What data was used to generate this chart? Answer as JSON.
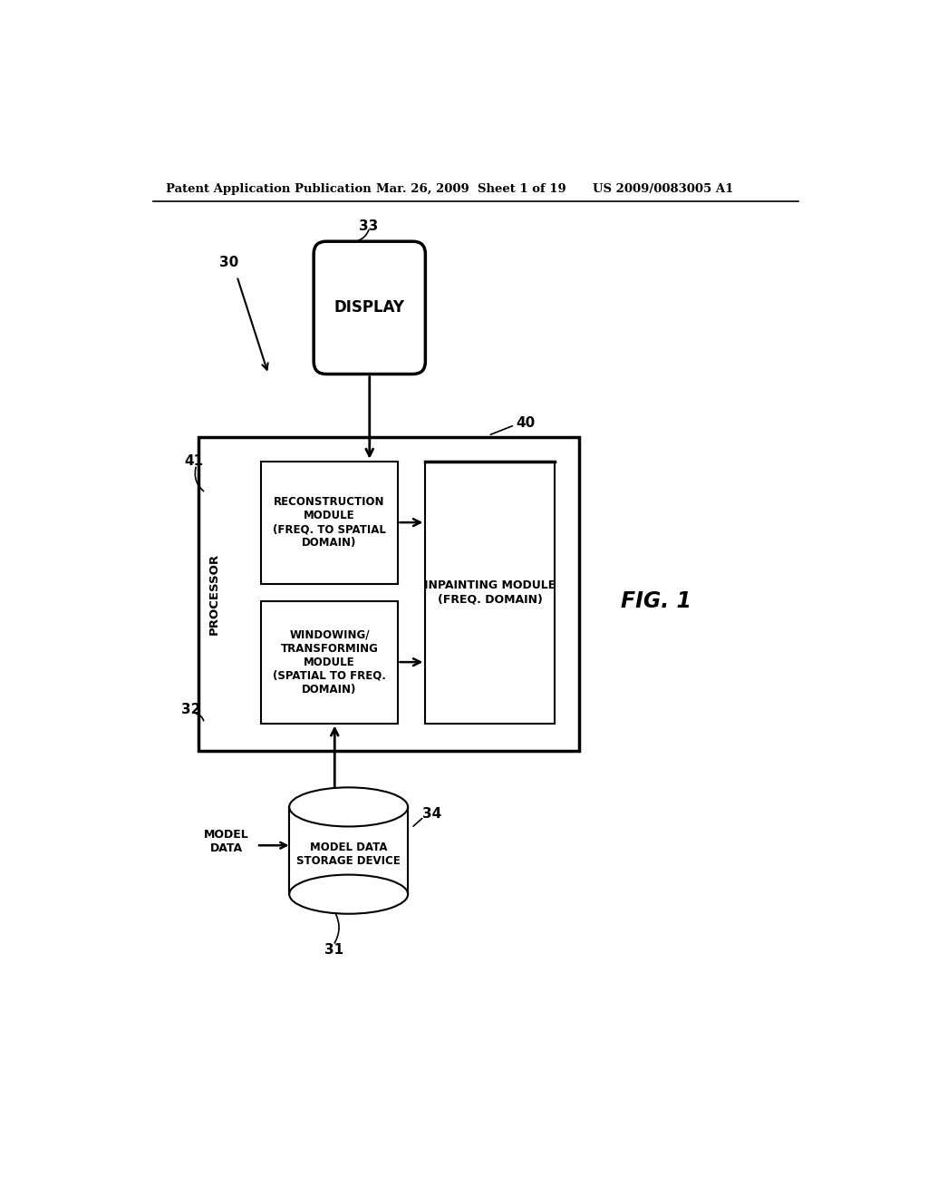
{
  "bg_color": "#ffffff",
  "header_left": "Patent Application Publication",
  "header_mid": "Mar. 26, 2009  Sheet 1 of 19",
  "header_right": "US 2009/0083005 A1",
  "fig_label": "FIG. 1",
  "label_30": "30",
  "label_31": "31",
  "label_32": "32",
  "label_33": "33",
  "label_34": "34",
  "label_40": "40",
  "label_41": "41",
  "display_text": "DISPLAY",
  "processor_text": "PROCESSOR",
  "reconstruction_text": "RECONSTRUCTION\nMODULE\n(FREQ. TO SPATIAL\nDOMAIN)",
  "windowing_text": "WINDOWING/\nTRANSFORMING\nMODULE\n(SPATIAL TO FREQ.\nDOMAIN)",
  "inpainting_text": "INPAINTING MODULE\n(FREQ. DOMAIN)",
  "model_data_text": "MODEL\nDATA",
  "storage_text": "MODEL DATA\nSTORAGE DEVICE"
}
